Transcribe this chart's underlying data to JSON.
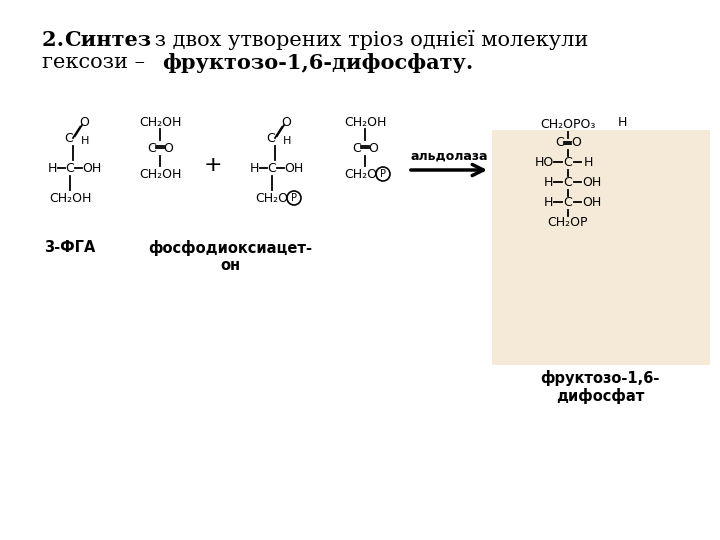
{
  "bg_color": "#ffffff",
  "box_bg": "#f5ead8",
  "title_normal1": "2. ",
  "title_bold1": "Синтез",
  "title_normal2": " з двох утворених тріоз однієї молекули",
  "title_line2_normal": "гексози – ",
  "title_line2_bold": "фруктозо-1,6-дифосфату.",
  "label_3fga": "3-ФГА",
  "label_dhap_line1": "фосфодиоксиацет-",
  "label_dhap_line2": "он",
  "label_fructose_line1": "фруктозо-1,6-",
  "label_fructose_line2": "дифосфат",
  "label_aldolase": "альдолаза"
}
